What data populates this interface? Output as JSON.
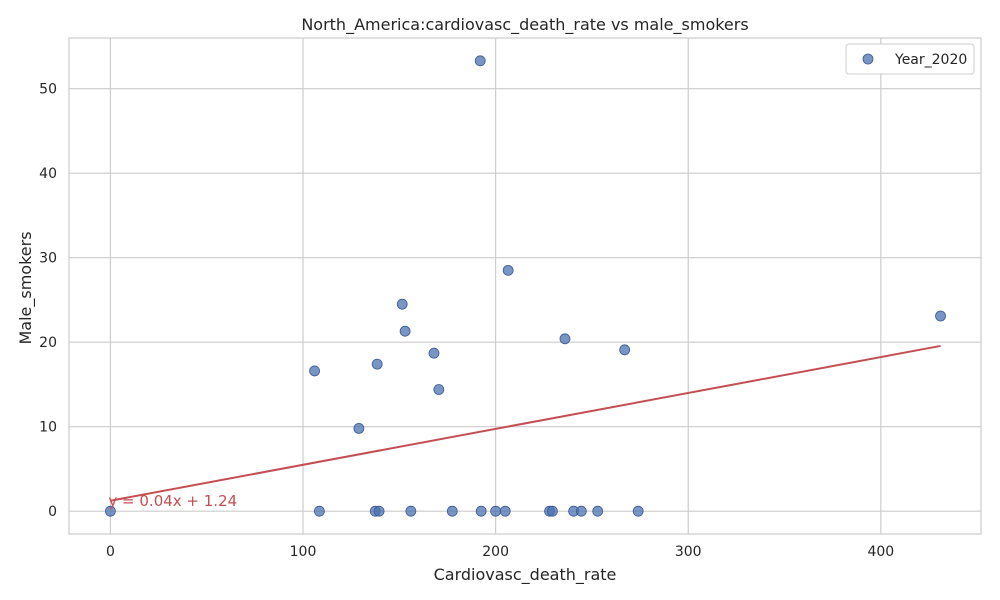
{
  "chart_data": {
    "type": "scatter",
    "title": "North_America:cardiovasc_death_rate vs male_smokers",
    "xlabel": "Cardiovasc_death_rate",
    "ylabel": "Male_smokers",
    "xlim": [
      -21.5,
      452
    ],
    "ylim": [
      -2.7,
      56
    ],
    "xticks": [
      0,
      100,
      200,
      300,
      400
    ],
    "yticks": [
      0,
      10,
      20,
      30,
      40,
      50
    ],
    "grid": true,
    "legend_position": "top-right",
    "series": [
      {
        "name": "Year_2020",
        "color": "#4c72b0",
        "points": [
          [
            0,
            0
          ],
          [
            106,
            16.6
          ],
          [
            108.5,
            0
          ],
          [
            129,
            9.8
          ],
          [
            137.5,
            0
          ],
          [
            138.5,
            17.4
          ],
          [
            139.5,
            0
          ],
          [
            151.5,
            24.5
          ],
          [
            153,
            21.3
          ],
          [
            156,
            0
          ],
          [
            168,
            18.7
          ],
          [
            170.5,
            14.4
          ],
          [
            177.5,
            0
          ],
          [
            192,
            53.3
          ],
          [
            192.5,
            0
          ],
          [
            200,
            0
          ],
          [
            205,
            0
          ],
          [
            206.5,
            28.5
          ],
          [
            228,
            0
          ],
          [
            229.5,
            0
          ],
          [
            236,
            20.4
          ],
          [
            240.5,
            0
          ],
          [
            244.5,
            0
          ],
          [
            253,
            0
          ],
          [
            267,
            19.1
          ],
          [
            274,
            0
          ],
          [
            431,
            23.1
          ]
        ]
      }
    ],
    "fit_line": {
      "color": "#c44e52",
      "slope": 0.0425,
      "intercept": 1.24,
      "x_range": [
        0,
        431
      ],
      "label": "y = 0.04x + 1.24",
      "label_at": [
        0,
        0.6
      ]
    }
  }
}
